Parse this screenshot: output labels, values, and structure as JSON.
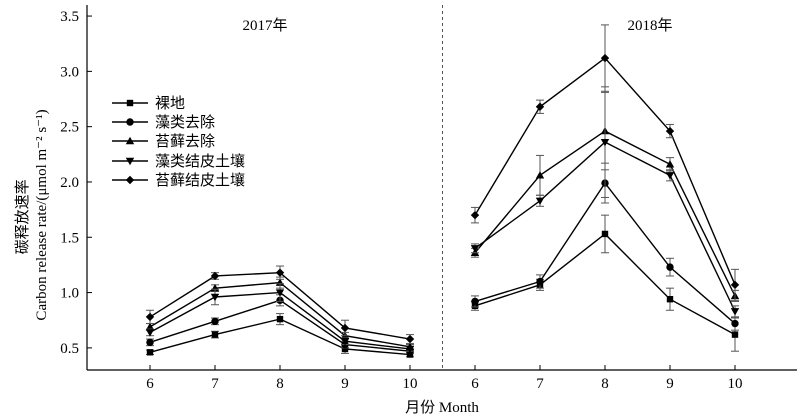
{
  "chart_data": {
    "type": "line",
    "ylabel_cn": "碳释放速率",
    "ylabel_en": "Carbon release rate/(μmol m⁻² s⁻¹)",
    "xlabel": "月份 Month",
    "ylim": [
      0.3,
      3.6
    ],
    "yticks": [
      "0.5",
      "1.0",
      "1.5",
      "2.0",
      "2.5",
      "3.0",
      "3.5"
    ],
    "categories": [
      "6",
      "7",
      "8",
      "9",
      "10",
      "6",
      "7",
      "8",
      "9",
      "10"
    ],
    "years": [
      "2017年",
      "2018年"
    ],
    "legend_position": "upper-left",
    "series": [
      {
        "name": "裸地",
        "marker": "square",
        "values": [
          0.46,
          0.62,
          0.76,
          0.49,
          0.44,
          0.88,
          1.07,
          1.53,
          0.94,
          0.62
        ],
        "errors": [
          0.02,
          0.03,
          0.05,
          0.04,
          0.02,
          0.04,
          0.05,
          0.17,
          0.1,
          0.15
        ]
      },
      {
        "name": "藻类去除",
        "marker": "circle",
        "values": [
          0.55,
          0.74,
          0.93,
          0.53,
          0.47,
          0.92,
          1.1,
          1.99,
          1.23,
          0.72
        ],
        "errors": [
          0.03,
          0.03,
          0.05,
          0.03,
          0.02,
          0.05,
          0.06,
          0.18,
          0.08,
          0.06
        ]
      },
      {
        "name": "苔藓去除",
        "marker": "triangle-up",
        "values": [
          0.69,
          1.04,
          1.09,
          0.61,
          0.51,
          1.36,
          2.06,
          2.46,
          2.16,
          0.97
        ],
        "errors": [
          0.03,
          0.03,
          0.05,
          0.03,
          0.02,
          0.04,
          0.18,
          0.35,
          0.06,
          0.05
        ]
      },
      {
        "name": "藻类结皮土壤",
        "marker": "triangle-down",
        "values": [
          0.64,
          0.96,
          1.0,
          0.56,
          0.49,
          1.4,
          1.83,
          2.36,
          2.06,
          0.83
        ],
        "errors": [
          0.03,
          0.07,
          0.08,
          0.03,
          0.02,
          0.04,
          0.05,
          0.5,
          0.05,
          0.05
        ]
      },
      {
        "name": "苔藓结皮土壤",
        "marker": "diamond",
        "values": [
          0.78,
          1.15,
          1.18,
          0.68,
          0.58,
          1.7,
          2.68,
          3.12,
          2.46,
          1.07
        ],
        "errors": [
          0.06,
          0.03,
          0.06,
          0.07,
          0.04,
          0.07,
          0.06,
          0.3,
          0.06,
          0.14
        ]
      }
    ]
  }
}
